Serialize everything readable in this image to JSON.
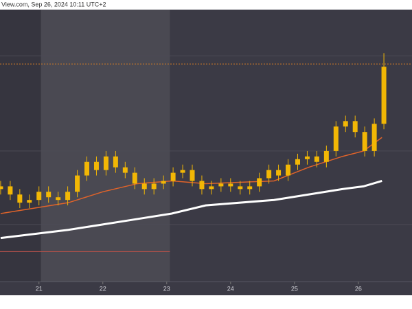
{
  "chart_data": {
    "type": "candlestick",
    "header": "View.com, Sep 26, 2024 10:11 UTC+2",
    "x": [
      20.4,
      20.55,
      20.7,
      20.85,
      21.0,
      21.15,
      21.3,
      21.45,
      21.6,
      21.75,
      21.9,
      22.05,
      22.2,
      22.35,
      22.5,
      22.65,
      22.8,
      22.95,
      23.1,
      23.25,
      23.4,
      23.55,
      23.7,
      23.85,
      24.0,
      24.15,
      24.3,
      24.45,
      24.6,
      24.75,
      24.9,
      25.05,
      25.2,
      25.35,
      25.5,
      25.65,
      25.8,
      25.95,
      26.1,
      26.25,
      26.4
    ],
    "open": [
      34,
      35,
      32,
      29,
      30,
      33,
      31,
      30,
      33,
      39,
      44,
      41,
      46,
      42,
      40,
      36,
      34,
      36,
      37,
      40,
      41,
      37,
      34,
      35,
      36,
      35,
      34,
      35,
      38,
      41,
      39,
      43,
      45,
      46,
      44,
      48,
      57,
      59,
      55,
      48,
      58
    ],
    "high": [
      37,
      37,
      34,
      32,
      35,
      35,
      33,
      35,
      41,
      46,
      46,
      48,
      48,
      44,
      42,
      38,
      38,
      39,
      42,
      43,
      43,
      39,
      37,
      38,
      38,
      37,
      37,
      40,
      43,
      43,
      45,
      47,
      48,
      48,
      50,
      59,
      61,
      61,
      57,
      60,
      84
    ],
    "low": [
      32,
      30,
      27,
      27,
      28,
      29,
      28,
      28,
      31,
      37,
      39,
      39,
      40,
      38,
      34,
      32,
      32,
      34,
      35,
      38,
      35,
      32,
      32,
      33,
      33,
      32,
      32,
      33,
      36,
      37,
      37,
      41,
      43,
      42,
      42,
      46,
      55,
      53,
      46,
      46,
      56
    ],
    "close": [
      35,
      32,
      29,
      30,
      33,
      31,
      30,
      33,
      39,
      44,
      41,
      46,
      42,
      40,
      36,
      34,
      36,
      37,
      40,
      41,
      37,
      34,
      35,
      36,
      35,
      34,
      35,
      38,
      41,
      39,
      43,
      45,
      46,
      44,
      48,
      57,
      59,
      55,
      48,
      58,
      79
    ],
    "color": "#f2b705",
    "lines": [
      {
        "color": "#e0632a",
        "x": [
          20.4,
          21.46,
          22.0,
          22.54,
          23.08,
          23.61,
          24.68,
          25.22,
          25.75,
          26.08,
          26.37
        ],
        "values": [
          25,
          29,
          33,
          36,
          37,
          36,
          37,
          42,
          46,
          48,
          53
        ]
      },
      {
        "color": "#ffffff",
        "x": [
          20.4,
          21.46,
          22.0,
          22.54,
          23.08,
          23.61,
          24.68,
          25.22,
          25.75,
          26.08,
          26.37
        ],
        "values": [
          16,
          19,
          21,
          23,
          25,
          28,
          30,
          32,
          34,
          35,
          37
        ]
      }
    ],
    "levels": [
      {
        "value": 80,
        "color": "#c8782a",
        "dashed": true,
        "xlim": [
          20.39,
          26.84
        ]
      },
      {
        "value": 11,
        "color": "#b0504a",
        "dashed": false,
        "xlim": [
          20.39,
          23.05
        ]
      }
    ],
    "grid_y": [
      83,
      48,
      21
    ],
    "highlight_x": [
      21.03,
      23.05
    ],
    "xlim": [
      20.39,
      26.84
    ],
    "ylim": [
      0,
      100
    ],
    "xticks": [
      21,
      22,
      23,
      24,
      25,
      26
    ]
  }
}
